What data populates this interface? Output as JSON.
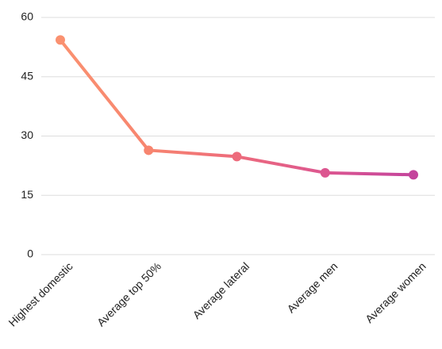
{
  "chart_data": {
    "type": "line",
    "categories": [
      "Highest domestic",
      "Average top 50%",
      "Average lateral",
      "Average men",
      "Average women"
    ],
    "values": [
      54.3,
      26.4,
      24.8,
      20.7,
      20.2
    ],
    "point_colors": [
      "#fa9170",
      "#f7856f",
      "#ed6b7c",
      "#dc5690",
      "#c4449c"
    ],
    "ylim": [
      0,
      60
    ],
    "yticks": [
      0,
      15,
      30,
      45,
      60
    ],
    "grid": true
  }
}
